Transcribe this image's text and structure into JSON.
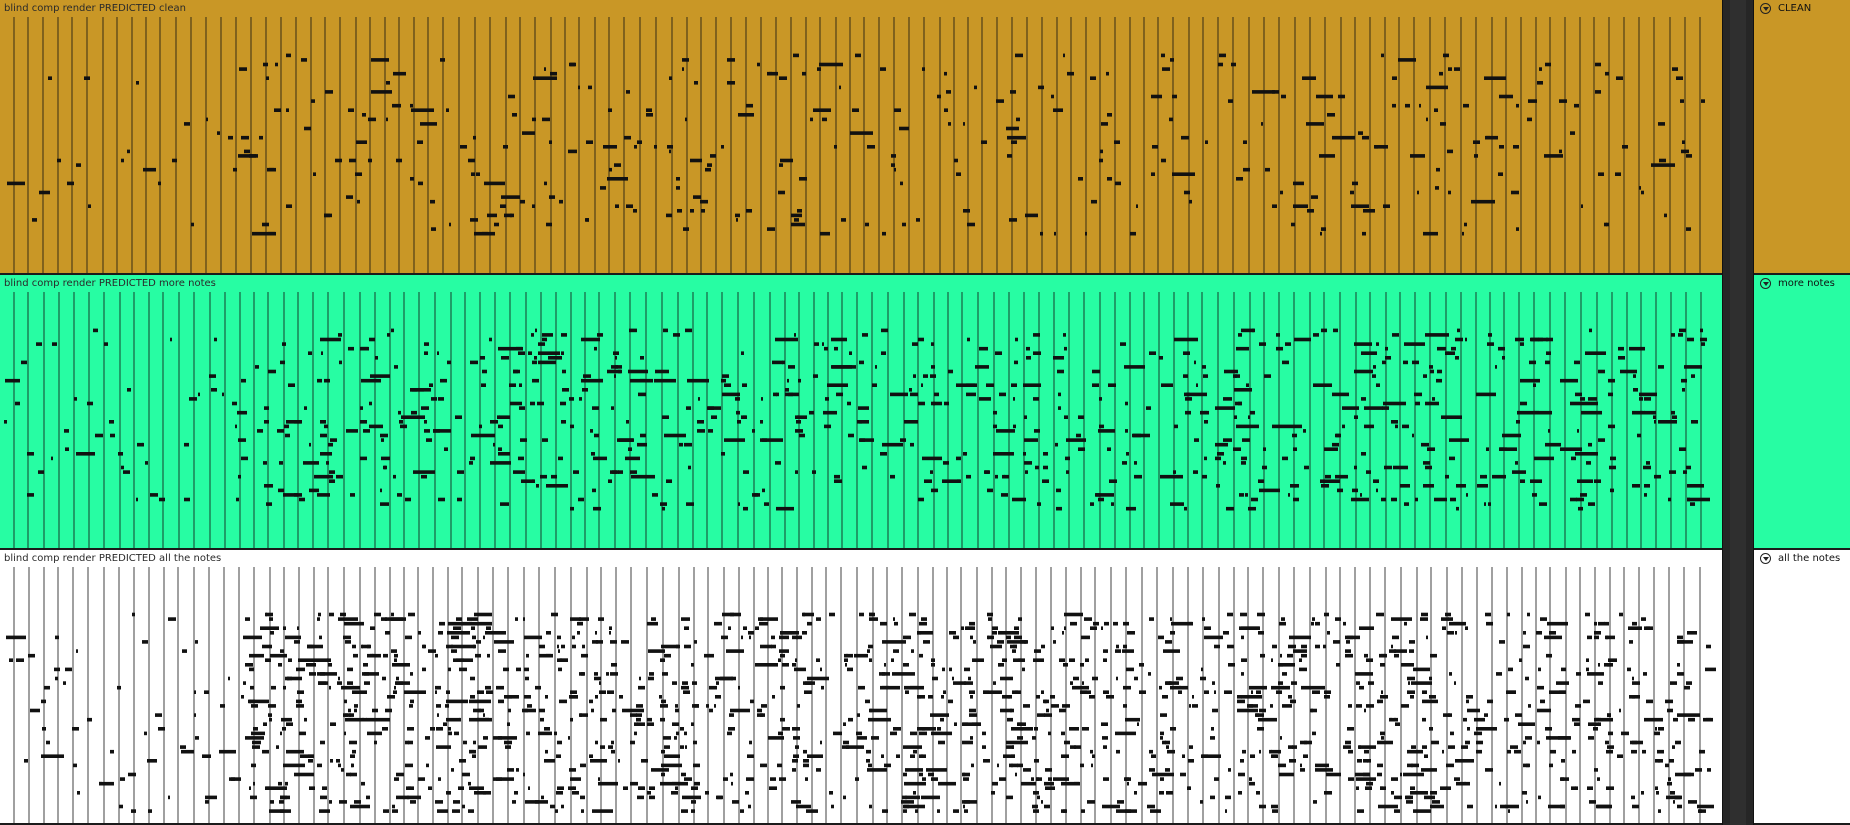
{
  "tracks": [
    {
      "clip_name": "blind comp render PREDICTED clean",
      "track_name": "CLEAN",
      "clip_color": "#c99726",
      "head_color": "#c99726",
      "density": 1,
      "seed": 11
    },
    {
      "clip_name": "blind comp render PREDICTED more notes",
      "track_name": "more notes",
      "clip_color": "#27fda3",
      "head_color": "#27fda3",
      "density": 2,
      "seed": 29
    },
    {
      "clip_name": "blind comp render PREDICTED all the notes",
      "track_name": "all the notes",
      "clip_color": "#ffffff",
      "head_color": "#ffffff",
      "density": 4,
      "seed": 47
    }
  ],
  "colors": {
    "note": "#111111",
    "bar_line": "#111111",
    "gutter": "#262626",
    "highlight_note": "#7dd84a"
  }
}
